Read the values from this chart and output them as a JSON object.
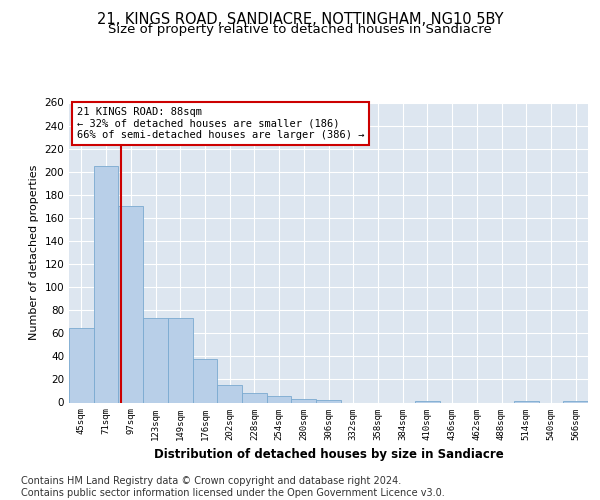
{
  "title1": "21, KINGS ROAD, SANDIACRE, NOTTINGHAM, NG10 5BY",
  "title2": "Size of property relative to detached houses in Sandiacre",
  "xlabel": "Distribution of detached houses by size in Sandiacre",
  "ylabel": "Number of detached properties",
  "categories": [
    "45sqm",
    "71sqm",
    "97sqm",
    "123sqm",
    "149sqm",
    "176sqm",
    "202sqm",
    "228sqm",
    "254sqm",
    "280sqm",
    "306sqm",
    "332sqm",
    "358sqm",
    "384sqm",
    "410sqm",
    "436sqm",
    "462sqm",
    "488sqm",
    "514sqm",
    "540sqm",
    "566sqm"
  ],
  "values": [
    65,
    205,
    170,
    73,
    73,
    38,
    15,
    8,
    6,
    3,
    2,
    0,
    0,
    0,
    1,
    0,
    0,
    0,
    1,
    0,
    1
  ],
  "bar_color": "#b8cfe8",
  "bar_edge_color": "#7aaad0",
  "background_color": "#dde6f0",
  "grid_color": "#ffffff",
  "vline_x": 1.62,
  "vline_color": "#cc0000",
  "annotation_text": "21 KINGS ROAD: 88sqm\n← 32% of detached houses are smaller (186)\n66% of semi-detached houses are larger (386) →",
  "annotation_box_color": "#cc0000",
  "ylim": [
    0,
    260
  ],
  "yticks": [
    0,
    20,
    40,
    60,
    80,
    100,
    120,
    140,
    160,
    180,
    200,
    220,
    240,
    260
  ],
  "footer": "Contains HM Land Registry data © Crown copyright and database right 2024.\nContains public sector information licensed under the Open Government Licence v3.0.",
  "title1_fontsize": 10.5,
  "title2_fontsize": 9.5,
  "xlabel_fontsize": 8.5,
  "ylabel_fontsize": 8,
  "footer_fontsize": 7,
  "annot_fontsize": 7.5
}
